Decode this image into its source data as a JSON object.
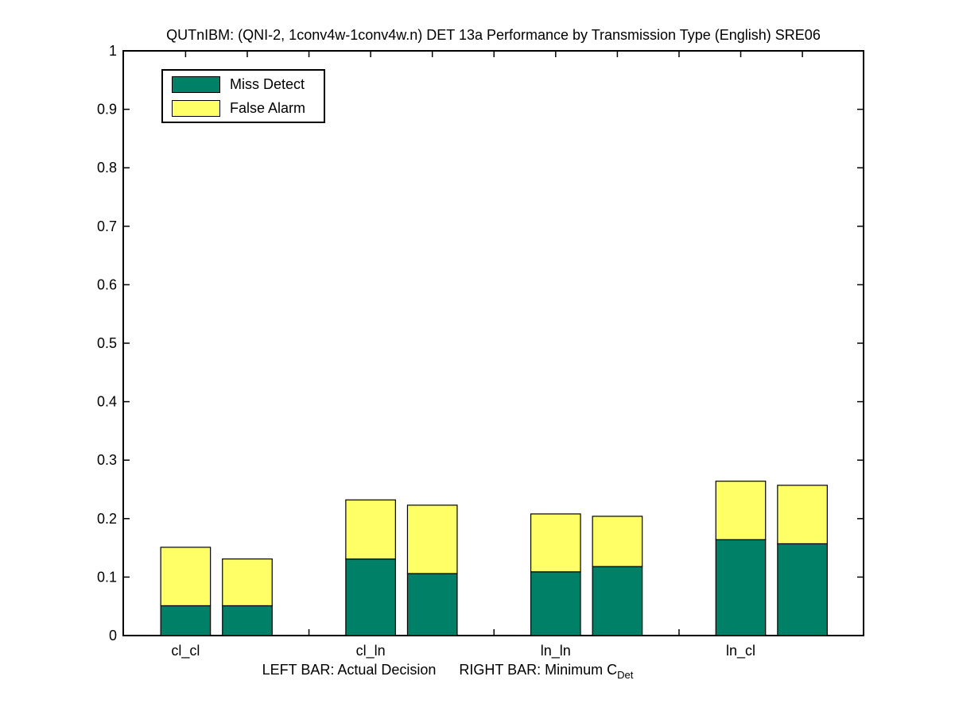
{
  "title": "QUTnIBM: (QNI-2, 1conv4w-1conv4w.n) DET 13a Performance by Transmission Type (English) SRE06",
  "legend": {
    "items": [
      {
        "label": "Miss Detect",
        "color": "#008066"
      },
      {
        "label": "False Alarm",
        "color": "#ffff66"
      }
    ]
  },
  "xlabel": {
    "left_text": "LEFT BAR: Actual Decision",
    "right_text": "RIGHT BAR: Minimum C",
    "subscript": "Det"
  },
  "chart_data": {
    "type": "bar",
    "stacked": true,
    "title": "QUTnIBM: (QNI-2, 1conv4w-1conv4w.n) DET 13a Performance by Transmission Type (English) SRE06",
    "xlabel": "LEFT BAR: Actual Decision    RIGHT BAR: Minimum C_Det",
    "ylabel": "",
    "categories": [
      "cl_cl",
      "cl_ln",
      "ln_ln",
      "ln_cl"
    ],
    "series": [
      {
        "name": "Actual Decision",
        "bar_position": "left",
        "segments": [
          {
            "name": "Miss Detect",
            "color": "#008066",
            "values": [
              0.051,
              0.131,
              0.109,
              0.164
            ]
          },
          {
            "name": "False Alarm",
            "color": "#ffff66",
            "values": [
              0.1,
              0.101,
              0.099,
              0.1
            ]
          }
        ]
      },
      {
        "name": "Minimum C_Det",
        "bar_position": "right",
        "segments": [
          {
            "name": "Miss Detect",
            "color": "#008066",
            "values": [
              0.051,
              0.106,
              0.118,
              0.157
            ]
          },
          {
            "name": "False Alarm",
            "color": "#ffff66",
            "values": [
              0.08,
              0.117,
              0.086,
              0.1
            ]
          }
        ]
      }
    ],
    "ylim": [
      0,
      1
    ],
    "yticks": [
      0,
      0.1,
      0.2,
      0.3,
      0.4,
      0.5,
      0.6,
      0.7,
      0.8,
      0.9,
      1
    ],
    "ytick_labels": [
      "0",
      "0.1",
      "0.2",
      "0.3",
      "0.4",
      "0.5",
      "0.6",
      "0.7",
      "0.8",
      "0.9",
      "1"
    ],
    "grid": false,
    "legend_position": "top-left",
    "bar_colors": {
      "miss_detect": "#008066",
      "false_alarm": "#ffff66"
    }
  }
}
